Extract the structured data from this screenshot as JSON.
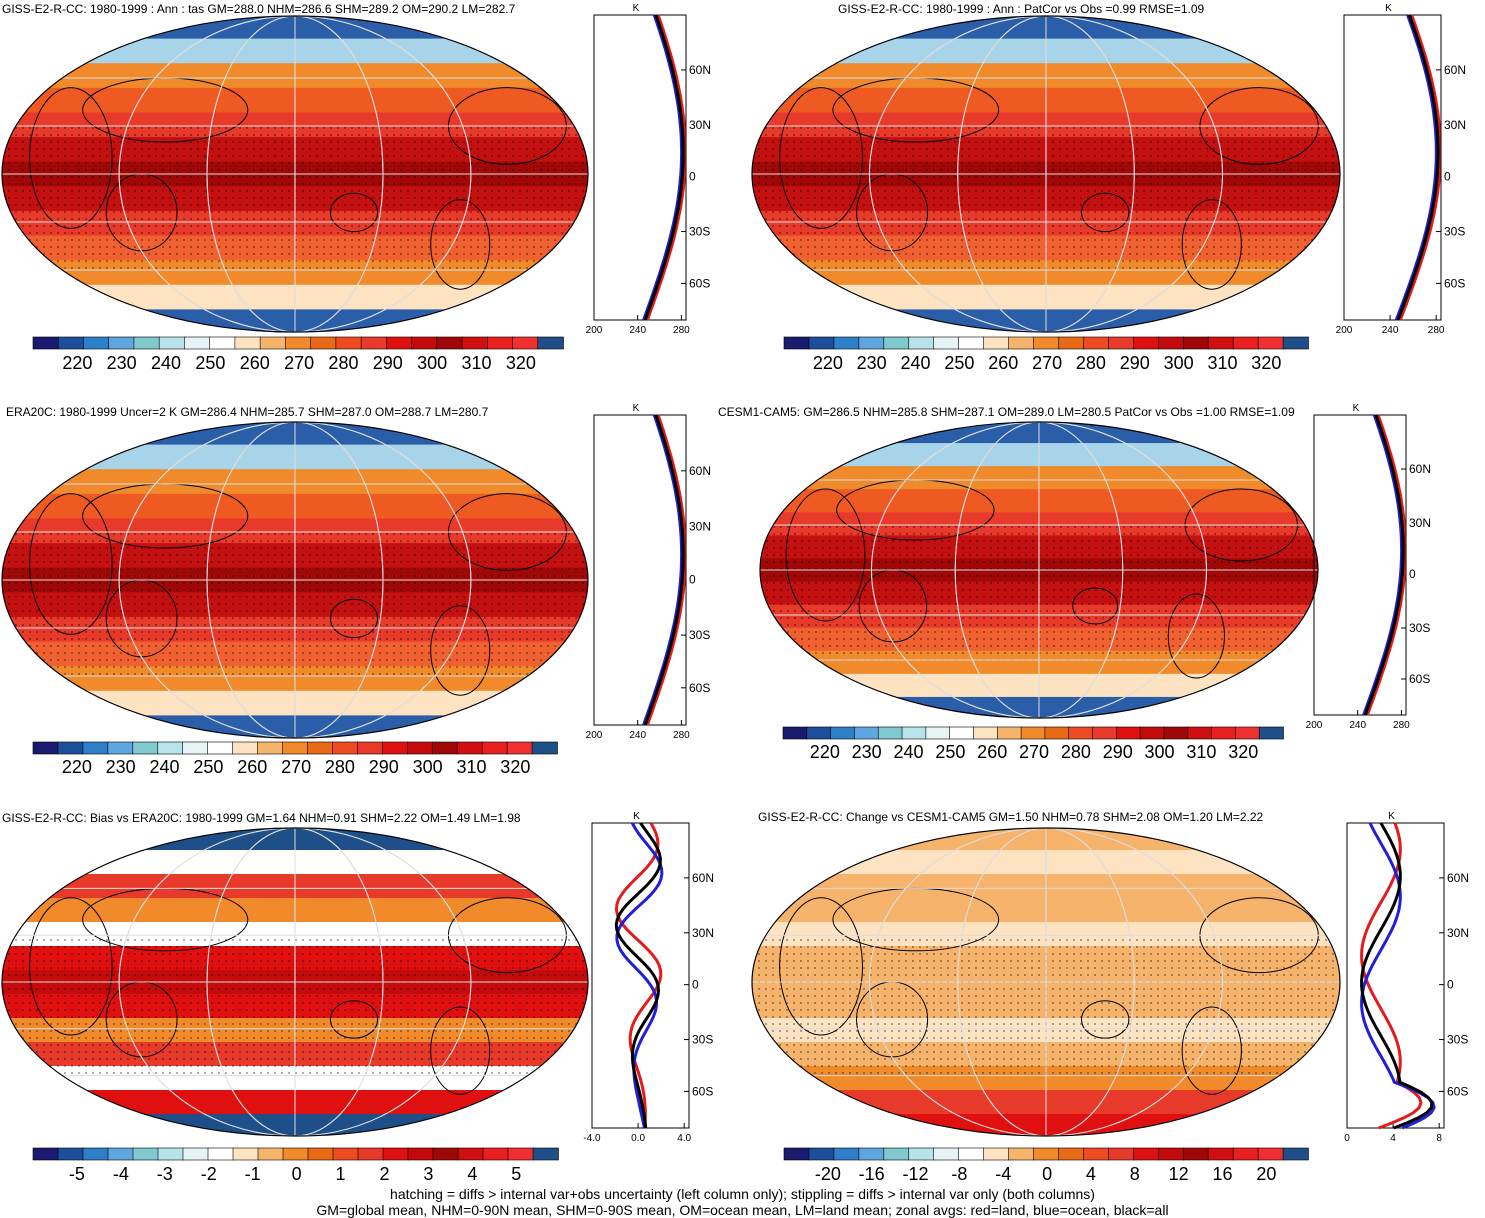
{
  "panels": [
    {
      "id": "p1",
      "title": "GISS-E2-R-CC: 1980-1999 : Ann : tas GM=288.0 NHM=286.6 SHM=289.2 OM=290.2 LM=282.7",
      "colorbar_ticks": [
        "220",
        "230",
        "240",
        "250",
        "260",
        "270",
        "280",
        "290",
        "300",
        "310",
        "320"
      ],
      "zonal_unit": "K",
      "zonal_lat_labels": [
        "60N",
        "30N",
        "0",
        "30S",
        "60S"
      ],
      "zonal_x_labels": [
        "200",
        "240",
        "280"
      ]
    },
    {
      "id": "p2",
      "title": "GISS-E2-R-CC: 1980-1999 : Ann : PatCor vs Obs =0.99 RMSE=1.09",
      "colorbar_ticks": [
        "220",
        "230",
        "240",
        "250",
        "260",
        "270",
        "280",
        "290",
        "300",
        "310",
        "320"
      ],
      "zonal_unit": "K",
      "zonal_lat_labels": [
        "60N",
        "30N",
        "0",
        "30S",
        "60S"
      ],
      "zonal_x_labels": [
        "200",
        "240",
        "280"
      ]
    },
    {
      "id": "p3",
      "title": "ERA20C: 1980-1999 Uncer=2 K GM=286.4 NHM=285.7 SHM=287.0 OM=288.7 LM=280.7",
      "colorbar_ticks": [
        "220",
        "230",
        "240",
        "250",
        "260",
        "270",
        "280",
        "290",
        "300",
        "310",
        "320"
      ],
      "zonal_unit": "K",
      "zonal_lat_labels": [
        "60N",
        "30N",
        "0",
        "30S",
        "60S"
      ],
      "zonal_x_labels": [
        "200",
        "240",
        "280"
      ]
    },
    {
      "id": "p4",
      "title": "CESM1-CAM5: GM=286.5 NHM=285.8 SHM=287.1 OM=289.0 LM=280.5 PatCor vs Obs =1.00 RMSE=1.09",
      "colorbar_ticks": [
        "220",
        "230",
        "240",
        "250",
        "260",
        "270",
        "280",
        "290",
        "300",
        "310",
        "320"
      ],
      "zonal_unit": "K",
      "zonal_lat_labels": [
        "60N",
        "30N",
        "0",
        "30S",
        "60S"
      ],
      "zonal_x_labels": [
        "200",
        "240",
        "280"
      ]
    },
    {
      "id": "p5",
      "title": "GISS-E2-R-CC: Bias vs ERA20C: 1980-1999 GM=1.64 NHM=0.91 SHM=2.22 OM=1.49 LM=1.98",
      "colorbar_ticks": [
        "-5",
        "-4",
        "-3",
        "-2",
        "-1",
        "0",
        "1",
        "2",
        "3",
        "4",
        "5"
      ],
      "zonal_unit": "K",
      "zonal_lat_labels": [
        "60N",
        "30N",
        "0",
        "30S",
        "60S"
      ],
      "zonal_x_labels": [
        "-4.0",
        "0.0",
        "4.0"
      ]
    },
    {
      "id": "p6",
      "title": "GISS-E2-R-CC: Change vs CESM1-CAM5 GM=1.50 NHM=0.78 SHM=2.08 OM=1.20 LM=2.22",
      "colorbar_ticks": [
        "-20",
        "-16",
        "-12",
        "-8",
        "-4",
        "0",
        "4",
        "8",
        "12",
        "16",
        "20"
      ],
      "zonal_unit": "K",
      "zonal_lat_labels": [
        "60N",
        "30N",
        "0",
        "30S",
        "60S"
      ],
      "zonal_x_labels": [
        "0",
        "4",
        "8"
      ]
    }
  ],
  "colors": {
    "abs_scale": [
      "#1a1a6e",
      "#1d4e9a",
      "#2d7fc8",
      "#5ea6df",
      "#7fc9cf",
      "#b9e3ea",
      "#e6f4f6",
      "#ffffff",
      "#fde3c1",
      "#f6b36b",
      "#f08a2a",
      "#e86a14",
      "#ef4b23",
      "#e83a2a",
      "#e01010",
      "#c40a0a",
      "#a00808",
      "#d01010",
      "#ea2020",
      "#f03030",
      "#1f4f88"
    ],
    "diff_scale": [
      "#1a1a6e",
      "#1d4e9a",
      "#2d7fc8",
      "#5ea6df",
      "#7fc9cf",
      "#b9e3ea",
      "#e6f4f6",
      "#ffffff",
      "#fde3c1",
      "#f6b36b",
      "#f08a2a",
      "#e86a14",
      "#ef4b23",
      "#e83a2a",
      "#e01010",
      "#c40a0a",
      "#a00808",
      "#d01010",
      "#ea2020",
      "#f03030",
      "#1f4f88"
    ],
    "land_line": "#e41a1c",
    "ocean_line": "#1f1fd8",
    "all_line": "#000000"
  },
  "footer": {
    "line1": "hatching = diffs > internal var+obs uncertainty (left column only); stippling = diffs > internal var only (both columns)",
    "line2": "GM=global mean, NHM=0-90N mean, SHM=0-90S mean, OM=ocean mean, LM=land mean; zonal avgs: red=land, blue=ocean, black=all"
  }
}
